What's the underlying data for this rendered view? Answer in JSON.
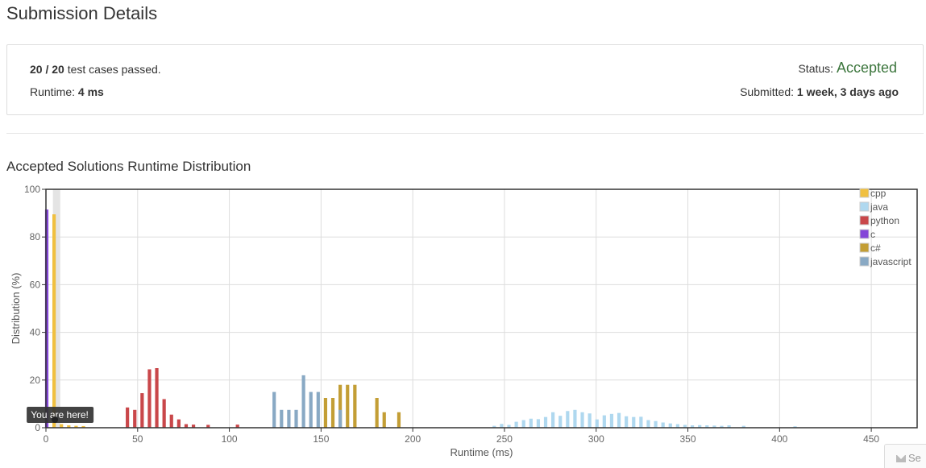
{
  "page": {
    "title": "Submission Details"
  },
  "details": {
    "passed_count": "20",
    "separator": " / ",
    "total_count": "20",
    "passed_suffix": " test cases passed.",
    "runtime_label": "Runtime: ",
    "runtime_value": "4 ms",
    "status_label": "Status: ",
    "status_value": "Accepted",
    "submitted_label": "Submitted: ",
    "submitted_value": "1 week, 3 days ago",
    "status_color": "#3c763d"
  },
  "section": {
    "title": "Accepted Solutions Runtime Distribution"
  },
  "feedback": {
    "label": "Se",
    "icon": "mail-icon"
  },
  "chart_data": {
    "type": "bar",
    "xlabel": "Runtime (ms)",
    "ylabel": "Distribution (%)",
    "xlim": [
      0,
      475
    ],
    "ylim": [
      0,
      100
    ],
    "xticks": [
      "0",
      "50",
      "100",
      "150",
      "200",
      "250",
      "300",
      "350",
      "400",
      "450"
    ],
    "yticks": [
      "0",
      "20",
      "40",
      "60",
      "80",
      "100"
    ],
    "grid": true,
    "legend_position": "top-right",
    "annotation": {
      "text": "You are here!",
      "x": 4
    },
    "highlight_x": 4,
    "series": [
      {
        "name": "cpp",
        "color": "#f0c040",
        "points": [
          [
            4,
            89.5
          ],
          [
            8,
            1.5
          ],
          [
            12,
            1
          ],
          [
            16,
            0.8
          ],
          [
            20,
            0.7
          ]
        ]
      },
      {
        "name": "java",
        "color": "#afd8ef",
        "points": [
          [
            244,
            0.8
          ],
          [
            248,
            1.6
          ],
          [
            252,
            1.2
          ],
          [
            256,
            2.5
          ],
          [
            260,
            3.2
          ],
          [
            264,
            3.8
          ],
          [
            268,
            3.6
          ],
          [
            272,
            4.5
          ],
          [
            276,
            6.5
          ],
          [
            280,
            5
          ],
          [
            284,
            7
          ],
          [
            288,
            7.5
          ],
          [
            292,
            6.5
          ],
          [
            296,
            6
          ],
          [
            300,
            3.5
          ],
          [
            304,
            5.2
          ],
          [
            308,
            5.8
          ],
          [
            312,
            6.2
          ],
          [
            316,
            4.8
          ],
          [
            320,
            4.5
          ],
          [
            324,
            4.6
          ],
          [
            328,
            3.2
          ],
          [
            332,
            2.8
          ],
          [
            336,
            2.2
          ],
          [
            340,
            1.8
          ],
          [
            344,
            1.5
          ],
          [
            348,
            1.2
          ],
          [
            352,
            1
          ],
          [
            356,
            1.1
          ],
          [
            360,
            1
          ],
          [
            364,
            0.9
          ],
          [
            368,
            0.8
          ],
          [
            372,
            1
          ],
          [
            380,
            0.8
          ],
          [
            408,
            0.6
          ]
        ]
      },
      {
        "name": "python",
        "color": "#c9474a",
        "points": [
          [
            44,
            8.5
          ],
          [
            48,
            7.5
          ],
          [
            52,
            14.5
          ],
          [
            56,
            24.5
          ],
          [
            60,
            25
          ],
          [
            64,
            12
          ],
          [
            68,
            5.5
          ],
          [
            72,
            3.5
          ],
          [
            76,
            1.5
          ],
          [
            80,
            1.3
          ],
          [
            88,
            1.2
          ],
          [
            104,
            1.3
          ]
        ]
      },
      {
        "name": "c",
        "color": "#8446d8",
        "points": [
          [
            0,
            91.5
          ]
        ]
      },
      {
        "name": "c#",
        "color": "#c39e35",
        "points": [
          [
            152,
            12.5
          ],
          [
            156,
            12.5
          ],
          [
            160,
            18
          ],
          [
            164,
            18
          ],
          [
            168,
            18
          ],
          [
            180,
            12.5
          ],
          [
            184,
            6.5
          ],
          [
            192,
            6.5
          ]
        ]
      },
      {
        "name": "javascript",
        "color": "#89a9c4",
        "points": [
          [
            124,
            15
          ],
          [
            128,
            7.5
          ],
          [
            132,
            7.5
          ],
          [
            136,
            7.5
          ],
          [
            140,
            22
          ],
          [
            144,
            15
          ],
          [
            148,
            15
          ],
          [
            160,
            7.5
          ]
        ]
      }
    ]
  }
}
